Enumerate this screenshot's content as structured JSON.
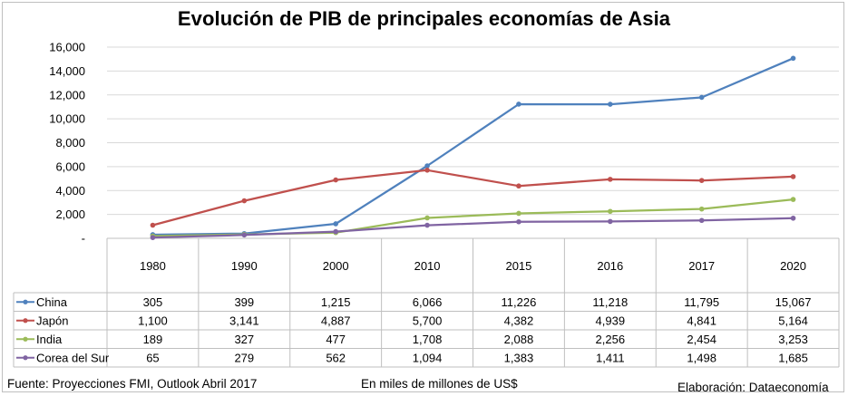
{
  "title": "Evolución de PIB de principales economías de Asia",
  "footer": {
    "source": "Fuente: Proyecciones FMI, Outlook Abril 2017",
    "units": "En miles de millones de US$",
    "credit": "Elaboración: Dataeconomía"
  },
  "chart_data": {
    "type": "line",
    "title": "Evolución de PIB de principales economías de Asia",
    "xlabel": "",
    "ylabel": "",
    "ylim": [
      0,
      16000
    ],
    "yticks": [
      0,
      2000,
      4000,
      6000,
      8000,
      10000,
      12000,
      14000,
      16000
    ],
    "ytick_labels": [
      "-",
      "2,000",
      "4,000",
      "6,000",
      "8,000",
      "10,000",
      "12,000",
      "14,000",
      "16,000"
    ],
    "grid": true,
    "legend": "data-table",
    "categories": [
      "1980",
      "1990",
      "2000",
      "2010",
      "2015",
      "2016",
      "2017",
      "2020"
    ],
    "series": [
      {
        "name": "China",
        "color": "#4f81bd",
        "values": [
          305,
          399,
          1215,
          6066,
          11226,
          11218,
          11795,
          15067
        ],
        "labels": [
          "305",
          "399",
          "1,215",
          "6,066",
          "11,226",
          "11,218",
          "11,795",
          "15,067"
        ]
      },
      {
        "name": "Japón",
        "color": "#c0504d",
        "values": [
          1100,
          3141,
          4887,
          5700,
          4382,
          4939,
          4841,
          5164
        ],
        "labels": [
          "1,100",
          "3,141",
          "4,887",
          "5,700",
          "4,382",
          "4,939",
          "4,841",
          "5,164"
        ]
      },
      {
        "name": "India",
        "color": "#9bbb59",
        "values": [
          189,
          327,
          477,
          1708,
          2088,
          2256,
          2454,
          3253
        ],
        "labels": [
          "189",
          "327",
          "477",
          "1,708",
          "2,088",
          "2,256",
          "2,454",
          "3,253"
        ]
      },
      {
        "name": "Corea del Sur",
        "color": "#8064a2",
        "values": [
          65,
          279,
          562,
          1094,
          1383,
          1411,
          1498,
          1685
        ],
        "labels": [
          "65",
          "279",
          "562",
          "1,094",
          "1,383",
          "1,411",
          "1,498",
          "1,685"
        ]
      }
    ]
  }
}
